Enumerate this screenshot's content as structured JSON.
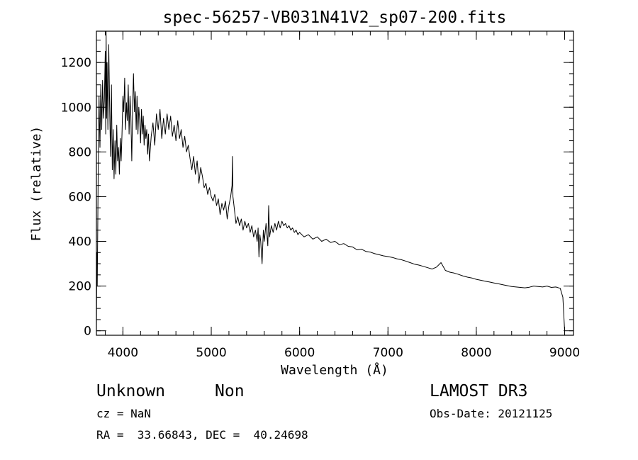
{
  "chart_data": {
    "type": "line",
    "title": "spec-56257-VB031N41V2_sp07-200.fits",
    "xlabel": "Wavelength (Å)",
    "ylabel": "Flux (relative)",
    "xlim": [
      3700,
      9100
    ],
    "ylim": [
      -20,
      1340
    ],
    "x_ticks": [
      4000,
      5000,
      6000,
      7000,
      8000,
      9000
    ],
    "y_ticks": [
      0,
      200,
      400,
      600,
      800,
      1000,
      1200
    ],
    "x_minor_step": 200,
    "y_minor_step": 50,
    "grid": false,
    "series": [
      {
        "points": [
          [
            3700,
            10
          ],
          [
            3705,
            350
          ],
          [
            3710,
            200
          ],
          [
            3720,
            700
          ],
          [
            3730,
            1050
          ],
          [
            3740,
            820
          ],
          [
            3750,
            1100
          ],
          [
            3760,
            900
          ],
          [
            3770,
            1120
          ],
          [
            3780,
            950
          ],
          [
            3790,
            1030
          ],
          [
            3800,
            1250
          ],
          [
            3805,
            880
          ],
          [
            3810,
            1340
          ],
          [
            3815,
            950
          ],
          [
            3820,
            1200
          ],
          [
            3830,
            900
          ],
          [
            3840,
            1280
          ],
          [
            3850,
            1000
          ],
          [
            3860,
            780
          ],
          [
            3870,
            1100
          ],
          [
            3880,
            720
          ],
          [
            3890,
            900
          ],
          [
            3900,
            680
          ],
          [
            3910,
            850
          ],
          [
            3920,
            700
          ],
          [
            3930,
            920
          ],
          [
            3940,
            760
          ],
          [
            3950,
            820
          ],
          [
            3960,
            700
          ],
          [
            3970,
            860
          ],
          [
            3980,
            760
          ],
          [
            3990,
            880
          ],
          [
            4000,
            1050
          ],
          [
            4010,
            980
          ],
          [
            4020,
            1130
          ],
          [
            4030,
            900
          ],
          [
            4040,
            1020
          ],
          [
            4050,
            940
          ],
          [
            4060,
            1100
          ],
          [
            4070,
            880
          ],
          [
            4080,
            1050
          ],
          [
            4090,
            960
          ],
          [
            4100,
            760
          ],
          [
            4110,
            1000
          ],
          [
            4120,
            1150
          ],
          [
            4130,
            980
          ],
          [
            4140,
            1070
          ],
          [
            4150,
            900
          ],
          [
            4160,
            1050
          ],
          [
            4170,
            880
          ],
          [
            4180,
            1000
          ],
          [
            4190,
            940
          ],
          [
            4200,
            840
          ],
          [
            4210,
            990
          ],
          [
            4220,
            880
          ],
          [
            4230,
            960
          ],
          [
            4240,
            830
          ],
          [
            4250,
            920
          ],
          [
            4260,
            860
          ],
          [
            4270,
            900
          ],
          [
            4280,
            790
          ],
          [
            4290,
            880
          ],
          [
            4300,
            760
          ],
          [
            4320,
            870
          ],
          [
            4340,
            930
          ],
          [
            4360,
            830
          ],
          [
            4380,
            970
          ],
          [
            4400,
            900
          ],
          [
            4420,
            990
          ],
          [
            4440,
            860
          ],
          [
            4460,
            950
          ],
          [
            4480,
            880
          ],
          [
            4500,
            970
          ],
          [
            4520,
            900
          ],
          [
            4540,
            960
          ],
          [
            4560,
            870
          ],
          [
            4580,
            920
          ],
          [
            4600,
            850
          ],
          [
            4620,
            940
          ],
          [
            4640,
            860
          ],
          [
            4660,
            900
          ],
          [
            4680,
            820
          ],
          [
            4700,
            870
          ],
          [
            4720,
            800
          ],
          [
            4740,
            830
          ],
          [
            4760,
            770
          ],
          [
            4780,
            720
          ],
          [
            4800,
            780
          ],
          [
            4820,
            700
          ],
          [
            4840,
            760
          ],
          [
            4860,
            660
          ],
          [
            4880,
            730
          ],
          [
            4900,
            690
          ],
          [
            4920,
            640
          ],
          [
            4940,
            660
          ],
          [
            4960,
            610
          ],
          [
            4980,
            640
          ],
          [
            5000,
            600
          ],
          [
            5020,
            580
          ],
          [
            5040,
            610
          ],
          [
            5060,
            560
          ],
          [
            5080,
            590
          ],
          [
            5100,
            520
          ],
          [
            5120,
            570
          ],
          [
            5140,
            540
          ],
          [
            5160,
            580
          ],
          [
            5180,
            500
          ],
          [
            5200,
            560
          ],
          [
            5220,
            600
          ],
          [
            5235,
            650
          ],
          [
            5240,
            780
          ],
          [
            5245,
            600
          ],
          [
            5260,
            550
          ],
          [
            5280,
            480
          ],
          [
            5300,
            510
          ],
          [
            5320,
            470
          ],
          [
            5340,
            500
          ],
          [
            5360,
            450
          ],
          [
            5380,
            490
          ],
          [
            5400,
            460
          ],
          [
            5420,
            480
          ],
          [
            5440,
            440
          ],
          [
            5460,
            470
          ],
          [
            5480,
            420
          ],
          [
            5500,
            450
          ],
          [
            5520,
            400
          ],
          [
            5530,
            460
          ],
          [
            5540,
            330
          ],
          [
            5550,
            430
          ],
          [
            5560,
            400
          ],
          [
            5575,
            300
          ],
          [
            5590,
            450
          ],
          [
            5600,
            400
          ],
          [
            5620,
            480
          ],
          [
            5640,
            380
          ],
          [
            5650,
            560
          ],
          [
            5660,
            420
          ],
          [
            5680,
            470
          ],
          [
            5700,
            440
          ],
          [
            5720,
            480
          ],
          [
            5740,
            450
          ],
          [
            5760,
            490
          ],
          [
            5780,
            460
          ],
          [
            5800,
            490
          ],
          [
            5820,
            470
          ],
          [
            5840,
            480
          ],
          [
            5860,
            460
          ],
          [
            5880,
            470
          ],
          [
            5900,
            450
          ],
          [
            5920,
            460
          ],
          [
            5940,
            440
          ],
          [
            5960,
            450
          ],
          [
            5980,
            430
          ],
          [
            6000,
            440
          ],
          [
            6050,
            420
          ],
          [
            6100,
            430
          ],
          [
            6150,
            410
          ],
          [
            6200,
            420
          ],
          [
            6250,
            400
          ],
          [
            6300,
            410
          ],
          [
            6350,
            395
          ],
          [
            6400,
            400
          ],
          [
            6450,
            385
          ],
          [
            6500,
            390
          ],
          [
            6550,
            378
          ],
          [
            6600,
            375
          ],
          [
            6650,
            362
          ],
          [
            6700,
            365
          ],
          [
            6750,
            355
          ],
          [
            6800,
            352
          ],
          [
            6850,
            345
          ],
          [
            6900,
            340
          ],
          [
            6950,
            335
          ],
          [
            7000,
            332
          ],
          [
            7050,
            328
          ],
          [
            7100,
            322
          ],
          [
            7150,
            318
          ],
          [
            7200,
            312
          ],
          [
            7250,
            305
          ],
          [
            7300,
            298
          ],
          [
            7350,
            294
          ],
          [
            7400,
            288
          ],
          [
            7450,
            282
          ],
          [
            7500,
            276
          ],
          [
            7550,
            285
          ],
          [
            7600,
            305
          ],
          [
            7650,
            270
          ],
          [
            7700,
            262
          ],
          [
            7750,
            258
          ],
          [
            7800,
            252
          ],
          [
            7850,
            245
          ],
          [
            7900,
            240
          ],
          [
            7950,
            236
          ],
          [
            8000,
            230
          ],
          [
            8050,
            226
          ],
          [
            8100,
            222
          ],
          [
            8150,
            218
          ],
          [
            8200,
            214
          ],
          [
            8250,
            210
          ],
          [
            8300,
            206
          ],
          [
            8350,
            202
          ],
          [
            8400,
            198
          ],
          [
            8450,
            196
          ],
          [
            8500,
            194
          ],
          [
            8550,
            192
          ],
          [
            8600,
            195
          ],
          [
            8650,
            200
          ],
          [
            8700,
            198
          ],
          [
            8750,
            196
          ],
          [
            8800,
            200
          ],
          [
            8850,
            194
          ],
          [
            8900,
            196
          ],
          [
            8950,
            190
          ],
          [
            8980,
            150
          ],
          [
            9000,
            0
          ]
        ]
      }
    ]
  },
  "info": {
    "object_class": "Unknown",
    "object_subclass": "Non",
    "survey": "LAMOST DR3",
    "redshift": "cz = NaN",
    "obs_date": "Obs-Date: 20121125",
    "coordinates": "RA =  33.66843, DEC =  40.24698"
  }
}
